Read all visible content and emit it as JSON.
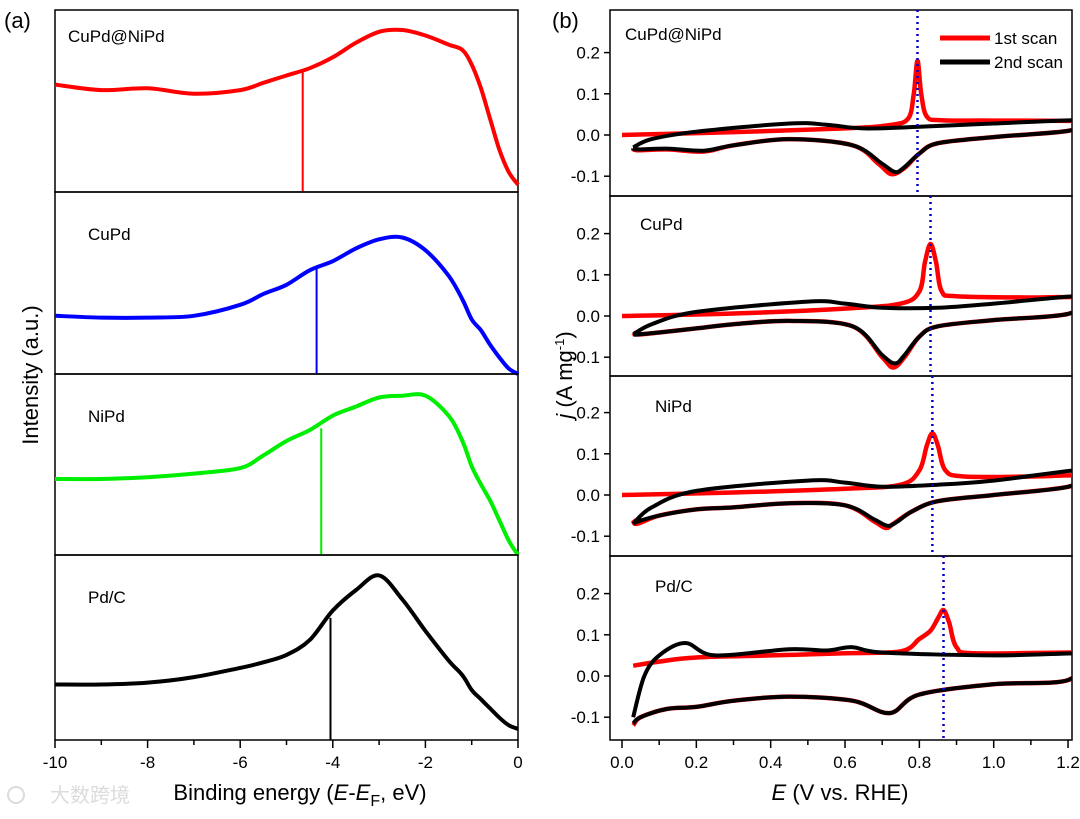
{
  "watermark": {
    "text": "大数跨境"
  },
  "chart_data": [
    {
      "type": "line",
      "panel_letter": "(a)",
      "xlabel": {
        "prefix": "Binding energy (",
        "E": "E",
        "dash": "-",
        "E2": "E",
        "sub": "F",
        "suffix": ", eV)"
      },
      "ylabel": "Intensity (a.u.)",
      "xlim": [
        -10,
        0
      ],
      "xticks": [
        -10,
        -8,
        -6,
        -4,
        -2,
        0
      ],
      "xtick_labels": [
        "-10",
        "-8",
        "-6",
        "-4",
        "-2",
        "0"
      ],
      "x": [
        -10,
        -9,
        -8,
        -7,
        -6,
        -5.5,
        -5,
        -4.5,
        -4,
        -3.5,
        -3,
        -2.5,
        -2,
        -1.5,
        -1.2,
        -1,
        -0.8,
        -0.6,
        -0.4,
        -0.2,
        0
      ],
      "series": [
        {
          "name": "CuPd@NiPd",
          "color": "#ff0000",
          "values": [
            0.59,
            0.56,
            0.57,
            0.54,
            0.56,
            0.6,
            0.64,
            0.68,
            0.74,
            0.82,
            0.88,
            0.89,
            0.86,
            0.81,
            0.78,
            0.7,
            0.57,
            0.4,
            0.23,
            0.11,
            0.04
          ],
          "marker_x": -4.65,
          "marker_top": 0.67
        },
        {
          "name": "CuPd",
          "color": "#0000ff",
          "values": [
            0.32,
            0.31,
            0.31,
            0.32,
            0.38,
            0.44,
            0.49,
            0.57,
            0.62,
            0.69,
            0.74,
            0.75,
            0.68,
            0.54,
            0.41,
            0.3,
            0.24,
            0.16,
            0.09,
            0.03,
            0.0
          ],
          "marker_x": -4.35,
          "marker_top": 0.58
        },
        {
          "name": "NiPd",
          "color": "#00ee00",
          "values": [
            0.42,
            0.42,
            0.43,
            0.45,
            0.48,
            0.55,
            0.63,
            0.69,
            0.77,
            0.82,
            0.87,
            0.88,
            0.88,
            0.77,
            0.63,
            0.49,
            0.39,
            0.3,
            0.19,
            0.08,
            0.0
          ],
          "marker_x": -4.25,
          "marker_top": 0.7
        },
        {
          "name": "Pd/C",
          "color": "#000000",
          "values": [
            0.3,
            0.3,
            0.31,
            0.34,
            0.39,
            0.42,
            0.46,
            0.54,
            0.7,
            0.81,
            0.89,
            0.76,
            0.59,
            0.43,
            0.35,
            0.27,
            0.22,
            0.17,
            0.12,
            0.08,
            0.06
          ],
          "marker_x": -4.05,
          "marker_top": 0.66
        }
      ]
    },
    {
      "type": "line",
      "panel_letter": "(b)",
      "xlabel": {
        "E": "E",
        "suffix": " (V vs. RHE)"
      },
      "ylabel": {
        "j": "j",
        "rest": " (A mg",
        "sup": "-1",
        "close": ")"
      },
      "xlim": [
        -0.03,
        1.24
      ],
      "ylim": [
        -0.15,
        0.3
      ],
      "xticks": [
        0.0,
        0.2,
        0.4,
        0.6,
        0.8,
        1.0,
        1.2
      ],
      "xtick_labels": [
        "0.0",
        "0.2",
        "0.4",
        "0.6",
        "0.8",
        "1.0",
        "1.2"
      ],
      "yticks": [
        0.2,
        0.1,
        0.0,
        -0.1
      ],
      "ytick_labels": [
        "0.2",
        "0.1",
        "0.0",
        "-0.1"
      ],
      "legend": {
        "position": "top-right",
        "entries": [
          {
            "label": "1st scan",
            "color": "#ff0000"
          },
          {
            "label": "2nd scan",
            "color": "#000000"
          }
        ]
      },
      "dotted_line_color": "#0000cc",
      "panels": [
        {
          "name": "CuPd@NiPd",
          "peak_E": 0.795,
          "scan1": [
            [
              0.0,
              0.0
            ],
            [
              0.3,
              0.007
            ],
            [
              0.6,
              0.016
            ],
            [
              0.72,
              0.024
            ],
            [
              0.77,
              0.04
            ],
            [
              0.785,
              0.1
            ],
            [
              0.795,
              0.18
            ],
            [
              0.805,
              0.1
            ],
            [
              0.82,
              0.045
            ],
            [
              0.86,
              0.036
            ],
            [
              1.0,
              0.035
            ],
            [
              1.22,
              0.034
            ],
            [
              1.23,
              0.03
            ],
            [
              1.2,
              0.01
            ],
            [
              1.0,
              -0.005
            ],
            [
              0.85,
              -0.02
            ],
            [
              0.8,
              -0.045
            ],
            [
              0.76,
              -0.08
            ],
            [
              0.725,
              -0.095
            ],
            [
              0.69,
              -0.07
            ],
            [
              0.62,
              -0.025
            ],
            [
              0.45,
              -0.01
            ],
            [
              0.3,
              -0.025
            ],
            [
              0.22,
              -0.04
            ],
            [
              0.12,
              -0.035
            ],
            [
              0.04,
              -0.037
            ],
            [
              0.03,
              -0.03
            ]
          ],
          "scan2": [
            [
              0.03,
              -0.03
            ],
            [
              0.08,
              -0.01
            ],
            [
              0.2,
              0.008
            ],
            [
              0.45,
              0.028
            ],
            [
              0.55,
              0.025
            ],
            [
              0.65,
              0.016
            ],
            [
              0.8,
              0.02
            ],
            [
              1.0,
              0.028
            ],
            [
              1.22,
              0.036
            ],
            [
              1.23,
              0.03
            ],
            [
              1.2,
              0.01
            ],
            [
              1.0,
              -0.005
            ],
            [
              0.85,
              -0.02
            ],
            [
              0.8,
              -0.045
            ],
            [
              0.76,
              -0.078
            ],
            [
              0.735,
              -0.09
            ],
            [
              0.7,
              -0.07
            ],
            [
              0.62,
              -0.025
            ],
            [
              0.45,
              -0.01
            ],
            [
              0.3,
              -0.025
            ],
            [
              0.22,
              -0.038
            ],
            [
              0.12,
              -0.033
            ],
            [
              0.04,
              -0.035
            ],
            [
              0.03,
              -0.03
            ]
          ]
        },
        {
          "name": "CuPd",
          "peak_E": 0.83,
          "scan1": [
            [
              0.0,
              0.0
            ],
            [
              0.3,
              0.006
            ],
            [
              0.6,
              0.018
            ],
            [
              0.75,
              0.03
            ],
            [
              0.8,
              0.06
            ],
            [
              0.815,
              0.13
            ],
            [
              0.83,
              0.175
            ],
            [
              0.845,
              0.13
            ],
            [
              0.86,
              0.06
            ],
            [
              0.9,
              0.048
            ],
            [
              1.1,
              0.045
            ],
            [
              1.22,
              0.046
            ],
            [
              1.23,
              0.04
            ],
            [
              1.2,
              0.005
            ],
            [
              1.0,
              -0.01
            ],
            [
              0.85,
              -0.025
            ],
            [
              0.8,
              -0.05
            ],
            [
              0.76,
              -0.1
            ],
            [
              0.73,
              -0.125
            ],
            [
              0.7,
              -0.1
            ],
            [
              0.62,
              -0.025
            ],
            [
              0.45,
              -0.012
            ],
            [
              0.3,
              -0.02
            ],
            [
              0.2,
              -0.03
            ],
            [
              0.1,
              -0.04
            ],
            [
              0.04,
              -0.045
            ],
            [
              0.03,
              -0.04
            ]
          ],
          "scan2": [
            [
              0.03,
              -0.045
            ],
            [
              0.08,
              -0.02
            ],
            [
              0.2,
              0.01
            ],
            [
              0.5,
              0.035
            ],
            [
              0.6,
              0.03
            ],
            [
              0.7,
              0.02
            ],
            [
              0.85,
              0.02
            ],
            [
              1.0,
              0.03
            ],
            [
              1.22,
              0.048
            ],
            [
              1.23,
              0.04
            ],
            [
              1.2,
              0.005
            ],
            [
              1.0,
              -0.01
            ],
            [
              0.85,
              -0.025
            ],
            [
              0.8,
              -0.05
            ],
            [
              0.76,
              -0.095
            ],
            [
              0.735,
              -0.115
            ],
            [
              0.7,
              -0.095
            ],
            [
              0.62,
              -0.025
            ],
            [
              0.45,
              -0.012
            ],
            [
              0.3,
              -0.02
            ],
            [
              0.2,
              -0.03
            ],
            [
              0.1,
              -0.04
            ],
            [
              0.04,
              -0.045
            ],
            [
              0.03,
              -0.045
            ]
          ]
        },
        {
          "name": "NiPd",
          "peak_E": 0.835,
          "scan1": [
            [
              0.0,
              0.0
            ],
            [
              0.3,
              0.006
            ],
            [
              0.6,
              0.015
            ],
            [
              0.75,
              0.025
            ],
            [
              0.8,
              0.06
            ],
            [
              0.82,
              0.12
            ],
            [
              0.835,
              0.15
            ],
            [
              0.85,
              0.12
            ],
            [
              0.87,
              0.06
            ],
            [
              0.92,
              0.045
            ],
            [
              1.1,
              0.045
            ],
            [
              1.22,
              0.048
            ],
            [
              1.23,
              0.045
            ],
            [
              1.2,
              0.02
            ],
            [
              1.0,
              0.0
            ],
            [
              0.85,
              -0.015
            ],
            [
              0.78,
              -0.04
            ],
            [
              0.73,
              -0.07
            ],
            [
              0.71,
              -0.08
            ],
            [
              0.68,
              -0.065
            ],
            [
              0.6,
              -0.025
            ],
            [
              0.45,
              -0.02
            ],
            [
              0.3,
              -0.03
            ],
            [
              0.2,
              -0.035
            ],
            [
              0.1,
              -0.05
            ],
            [
              0.04,
              -0.07
            ],
            [
              0.03,
              -0.06
            ]
          ],
          "scan2": [
            [
              0.03,
              -0.07
            ],
            [
              0.08,
              -0.03
            ],
            [
              0.2,
              0.01
            ],
            [
              0.5,
              0.035
            ],
            [
              0.6,
              0.03
            ],
            [
              0.7,
              0.02
            ],
            [
              0.85,
              0.025
            ],
            [
              1.0,
              0.035
            ],
            [
              1.22,
              0.06
            ],
            [
              1.23,
              0.05
            ],
            [
              1.2,
              0.02
            ],
            [
              1.0,
              0.0
            ],
            [
              0.85,
              -0.015
            ],
            [
              0.78,
              -0.04
            ],
            [
              0.74,
              -0.065
            ],
            [
              0.715,
              -0.075
            ],
            [
              0.68,
              -0.06
            ],
            [
              0.6,
              -0.025
            ],
            [
              0.45,
              -0.02
            ],
            [
              0.3,
              -0.03
            ],
            [
              0.2,
              -0.035
            ],
            [
              0.1,
              -0.05
            ],
            [
              0.04,
              -0.065
            ],
            [
              0.03,
              -0.07
            ]
          ]
        },
        {
          "name": "Pd/C",
          "peak_E": 0.865,
          "scan1": [
            [
              0.03,
              0.025
            ],
            [
              0.1,
              0.035
            ],
            [
              0.2,
              0.045
            ],
            [
              0.4,
              0.05
            ],
            [
              0.6,
              0.055
            ],
            [
              0.75,
              0.06
            ],
            [
              0.8,
              0.09
            ],
            [
              0.83,
              0.11
            ],
            [
              0.85,
              0.14
            ],
            [
              0.865,
              0.16
            ],
            [
              0.88,
              0.13
            ],
            [
              0.9,
              0.07
            ],
            [
              0.95,
              0.055
            ],
            [
              1.22,
              0.057
            ],
            [
              1.23,
              0.05
            ],
            [
              1.2,
              -0.01
            ],
            [
              1.0,
              -0.02
            ],
            [
              0.8,
              -0.045
            ],
            [
              0.72,
              -0.09
            ],
            [
              0.62,
              -0.06
            ],
            [
              0.45,
              -0.05
            ],
            [
              0.3,
              -0.06
            ],
            [
              0.2,
              -0.075
            ],
            [
              0.12,
              -0.08
            ],
            [
              0.05,
              -0.1
            ],
            [
              0.03,
              -0.12
            ]
          ],
          "scan2": [
            [
              0.03,
              -0.1
            ],
            [
              0.06,
              0.0
            ],
            [
              0.1,
              0.05
            ],
            [
              0.17,
              0.08
            ],
            [
              0.25,
              0.05
            ],
            [
              0.45,
              0.065
            ],
            [
              0.55,
              0.062
            ],
            [
              0.62,
              0.07
            ],
            [
              0.7,
              0.057
            ],
            [
              1.0,
              0.05
            ],
            [
              1.22,
              0.055
            ],
            [
              1.23,
              0.05
            ],
            [
              1.2,
              -0.01
            ],
            [
              1.0,
              -0.02
            ],
            [
              0.8,
              -0.045
            ],
            [
              0.72,
              -0.09
            ],
            [
              0.62,
              -0.06
            ],
            [
              0.45,
              -0.05
            ],
            [
              0.3,
              -0.06
            ],
            [
              0.2,
              -0.075
            ],
            [
              0.12,
              -0.08
            ],
            [
              0.05,
              -0.1
            ],
            [
              0.03,
              -0.115
            ]
          ]
        }
      ]
    }
  ]
}
